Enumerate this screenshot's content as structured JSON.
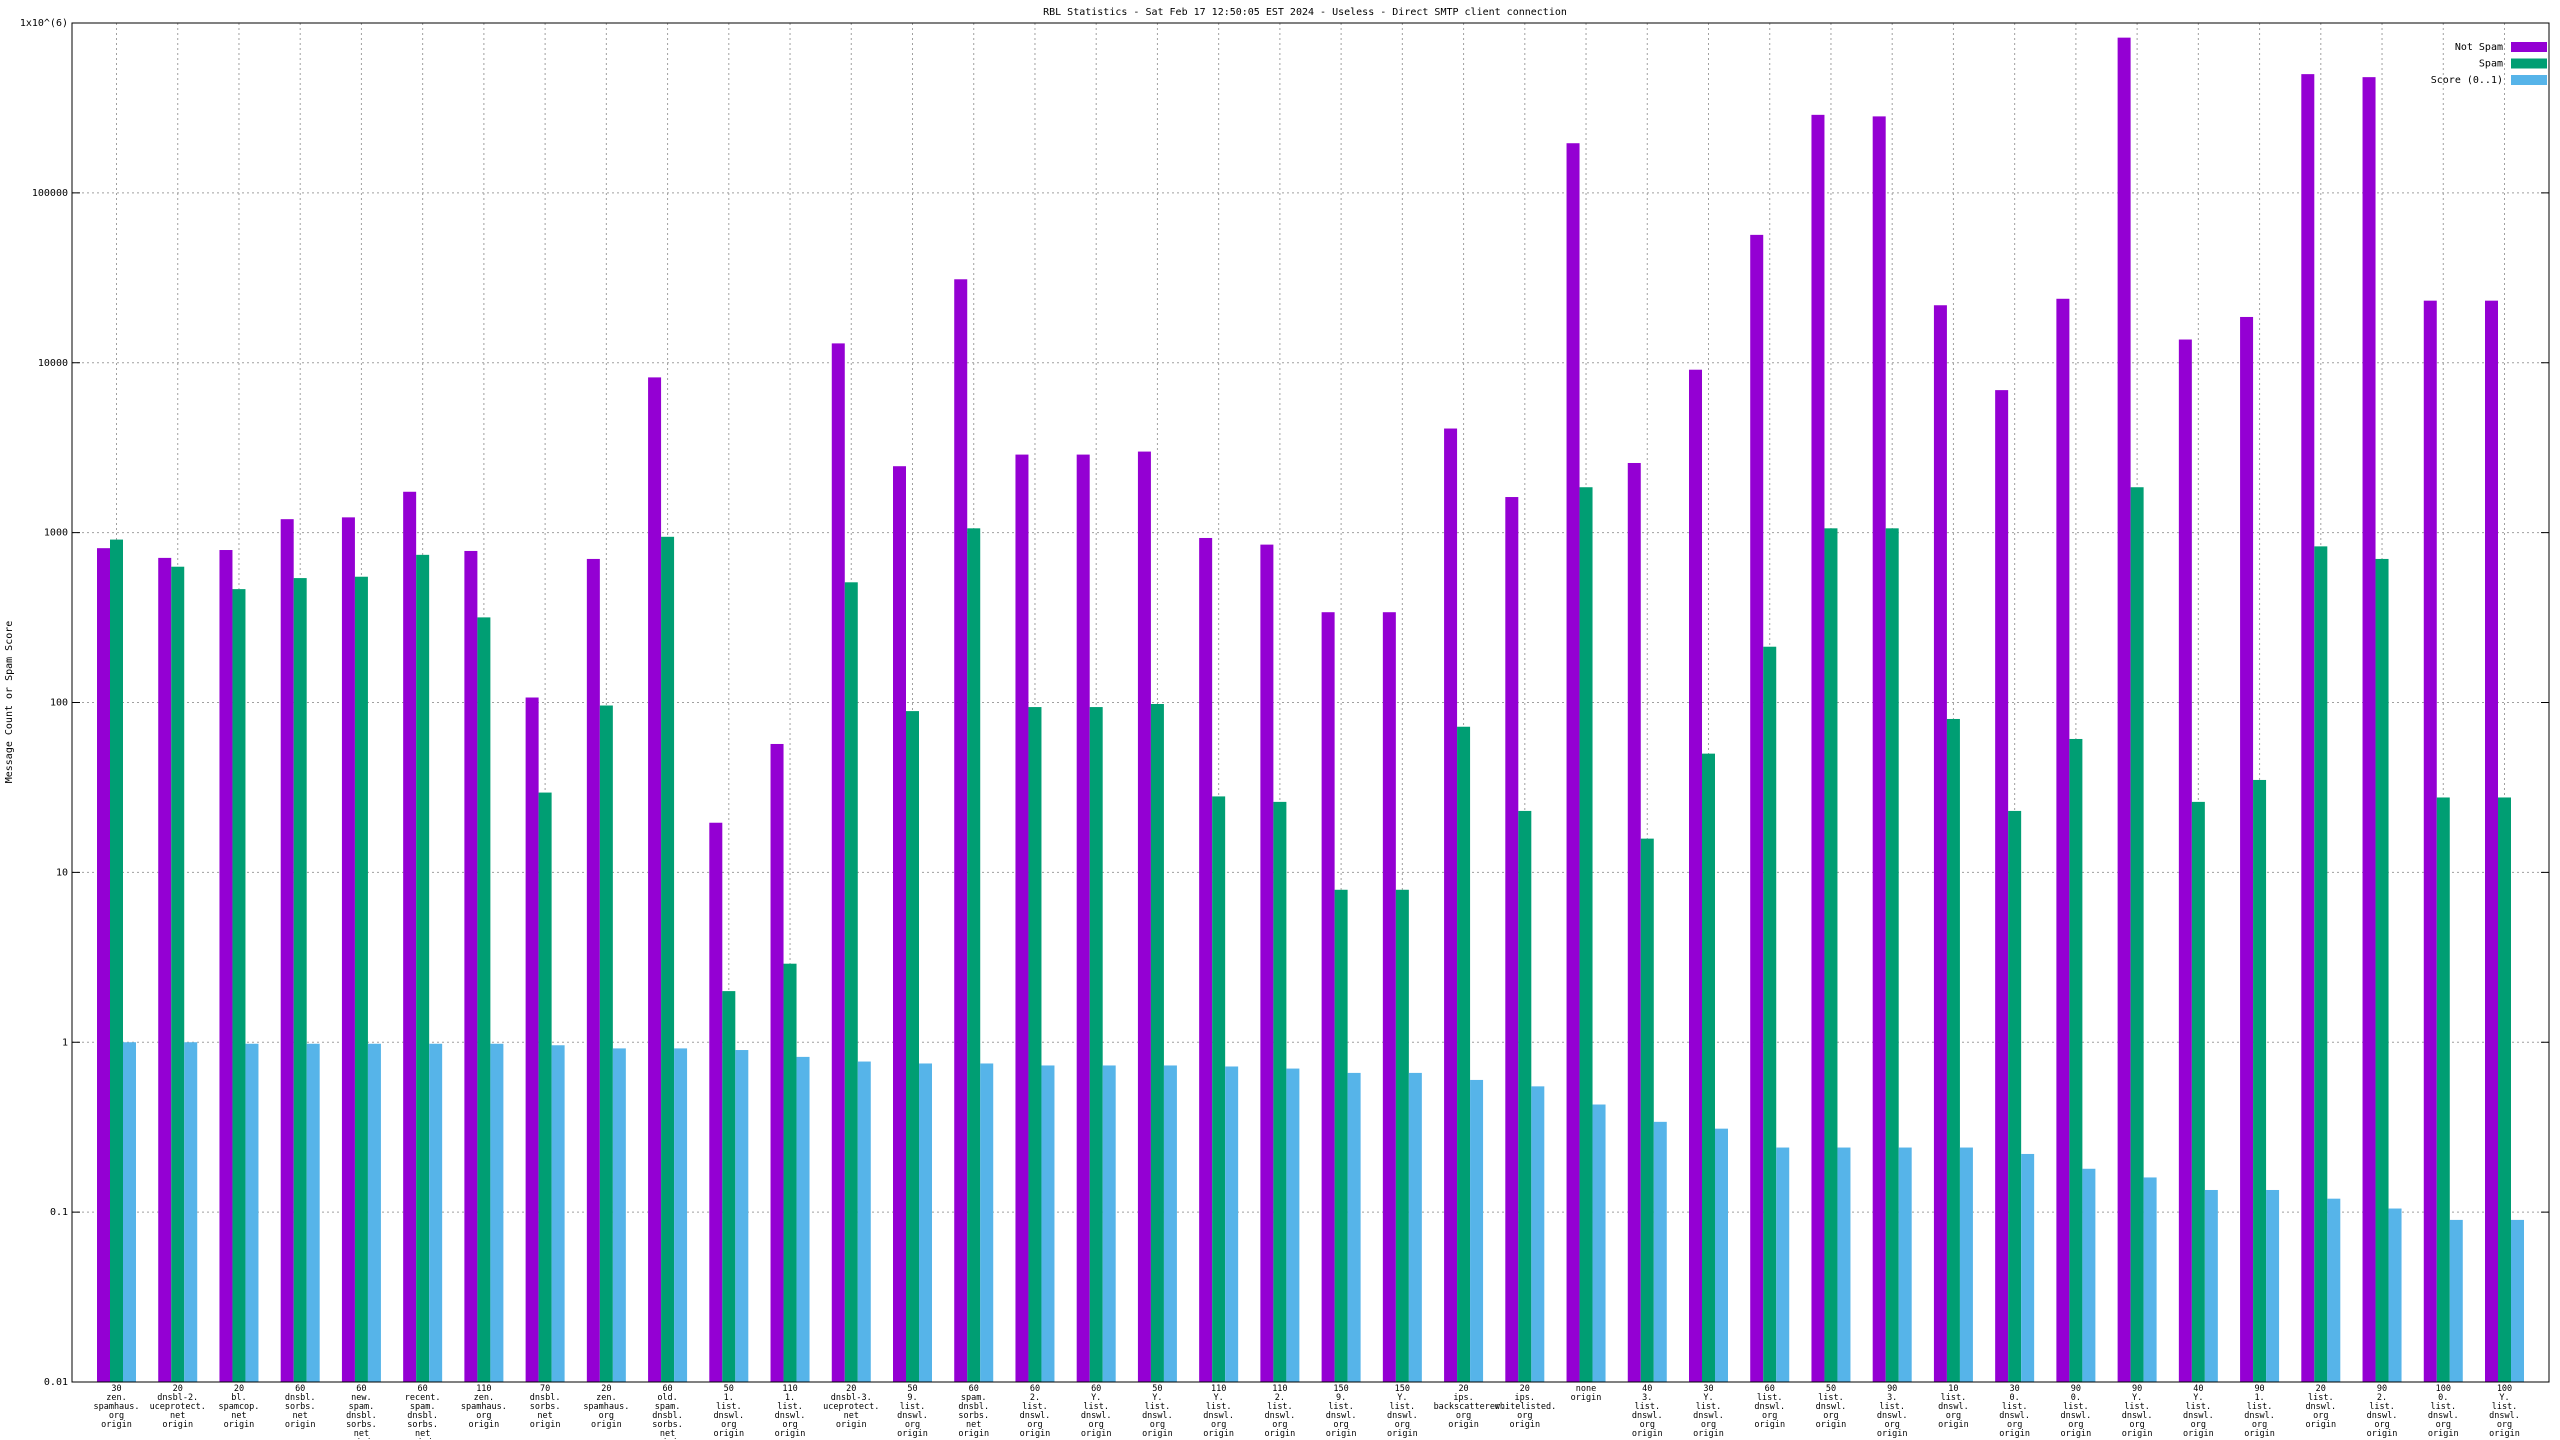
{
  "chart_data": {
    "type": "bar",
    "title": "RBL Statistics - Sat Feb 17 12:50:05 EST 2024 - Useless - Direct SMTP client connection",
    "y_label": "Message Count or Spam Score",
    "log_y": true,
    "grid": true,
    "legend": "top-right",
    "ylim": [
      0.01,
      1000000
    ],
    "yticks": [
      0.01,
      0.1,
      1,
      10,
      100,
      1000,
      10000,
      100000,
      {
        "value": 1000000,
        "label": "1x10^(6)"
      }
    ],
    "categories": [
      "30\nzen.\nspamhaus.\norg\norigin",
      "20\ndnsbl-2.\nuceprotect.\nnet\norigin",
      "20\nbl.\nspamcop.\nnet\norigin",
      "60\ndnsbl.\nsorbs.\nnet\norigin",
      "60\nnew.\nspam.\ndnsbl.\nsorbs.\nnet\norigin",
      "60\nrecent.\nspam.\ndnsbl.\nsorbs.\nnet\norigin",
      "110\nzen.\nspamhaus.\norg\norigin",
      "70\ndnsbl.\nsorbs.\nnet\norigin",
      "20\nzen.\nspamhaus.\norg\norigin",
      "60\nold.\nspam.\ndnsbl.\nsorbs.\nnet\norigin",
      "50\n1.\nlist.\ndnswl.\norg\norigin",
      "110\n1.\nlist.\ndnswl.\norg\norigin",
      "20\ndnsbl-3.\nuceprotect.\nnet\norigin",
      "50\n9.\nlist.\ndnswl.\norg\norigin",
      "60\nspam.\ndnsbl.\nsorbs.\nnet\norigin",
      "60\n2.\nlist.\ndnswl.\norg\norigin",
      "60\nY.\nlist.\ndnswl.\norg\norigin",
      "50\nY.\nlist.\ndnswl.\norg\norigin",
      "110\nY.\nlist.\ndnswl.\norg\norigin",
      "110\n2.\nlist.\ndnswl.\norg\norigin",
      "150\n9.\nlist.\ndnswl.\norg\norigin",
      "150\nY.\nlist.\ndnswl.\norg\norigin",
      "20\nips.\nbackscatterer.\norg\norigin",
      "20\nips.\nwhitelisted.\norg\norigin",
      "none\norigin",
      "40\n3.\nlist.\ndnswl.\norg\norigin",
      "30\nY.\nlist.\ndnswl.\norg\norigin",
      "60\nlist.\ndnswl.\norg\norigin",
      "50\nlist.\ndnswl.\norg\norigin",
      "90\n3.\nlist.\ndnswl.\norg\norigin",
      "10\nlist.\ndnswl.\norg\norigin",
      "30\n0.\nlist.\ndnswl.\norg\norigin",
      "90\n0.\nlist.\ndnswl.\norg\norigin",
      "90\nY.\nlist.\ndnswl.\norg\norigin",
      "40\nY.\nlist.\ndnswl.\norg\norigin",
      "90\n1.\nlist.\ndnswl.\norg\norigin",
      "20\nlist.\ndnswl.\norg\norigin",
      "90\n2.\nlist.\ndnswl.\norg\norigin",
      "100\n0.\nlist.\ndnswl.\norg\norigin",
      "100\nY.\nlist.\ndnswl.\norg\norigin"
    ],
    "series": [
      {
        "name": "Not Spam",
        "color": "#9400d3",
        "values": [
          810,
          710,
          790,
          1200,
          1230,
          1740,
          780,
          107,
          700,
          8200,
          19.6,
          57,
          13000,
          2460,
          31000,
          2880,
          2880,
          3000,
          930,
          850,
          340,
          340,
          4100,
          1620,
          196000,
          2570,
          9100,
          56600,
          288000,
          282000,
          21800,
          6900,
          23800,
          820000,
          13700,
          18600,
          500000,
          480000,
          23200,
          23200
        ]
      },
      {
        "name": "Spam",
        "color": "#009e73",
        "values": [
          910,
          630,
          465,
          540,
          550,
          740,
          317,
          29.5,
          96,
          945,
          2.0,
          2.9,
          510,
          89,
          1060,
          94,
          94,
          98,
          28,
          26,
          7.9,
          7.9,
          72,
          23,
          1850,
          15.8,
          50,
          213,
          1060,
          1060,
          80,
          23,
          61,
          1850,
          26,
          35,
          830,
          700,
          27.6,
          27.6
        ]
      },
      {
        "name": "Score (0..1)",
        "color": "#56b4e9",
        "values": [
          1.0,
          1.0,
          0.98,
          0.98,
          0.98,
          0.98,
          0.98,
          0.96,
          0.92,
          0.92,
          0.9,
          0.82,
          0.77,
          0.75,
          0.75,
          0.73,
          0.73,
          0.73,
          0.72,
          0.7,
          0.66,
          0.66,
          0.6,
          0.55,
          0.43,
          0.34,
          0.31,
          0.24,
          0.24,
          0.24,
          0.24,
          0.22,
          0.18,
          0.16,
          0.135,
          0.135,
          0.12,
          0.105,
          0.09,
          0.09
        ]
      }
    ]
  }
}
